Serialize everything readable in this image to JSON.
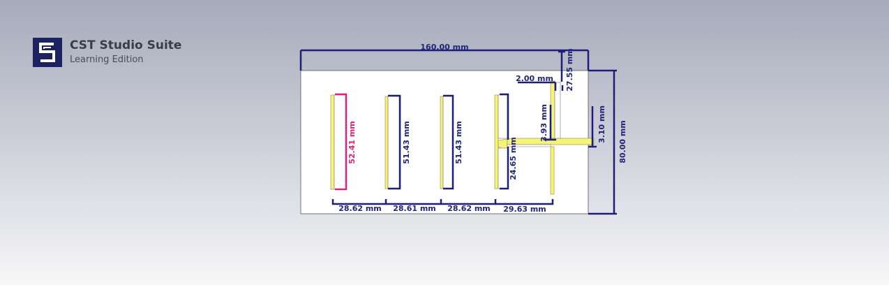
{
  "brand": {
    "title": "CST Studio Suite",
    "subtitle": "Learning Edition",
    "logo_icon": "cst-logo-icon"
  },
  "colors": {
    "dimension": "#1c1f7a",
    "highlight_dimension": "#e0207a",
    "strip_fill": "#f6f37a",
    "substrate": "#ffffff"
  },
  "dimensions": {
    "total_width": "160.00 mm",
    "total_height": "80.00 mm",
    "feed_width": "2.00 mm",
    "top_gap": "27.55 mm",
    "strip1_length": "52.41 mm",
    "strip2_length": "51.43 mm",
    "strip3_length": "51.43 mm",
    "stub_length": "24.65 mm",
    "stub_gap": "3.93 mm",
    "feed_offset": "3.10 mm",
    "spacing1": "28.62 mm",
    "spacing2": "28.61 mm",
    "spacing3": "28.62 mm",
    "spacing4": "29.63 mm"
  }
}
